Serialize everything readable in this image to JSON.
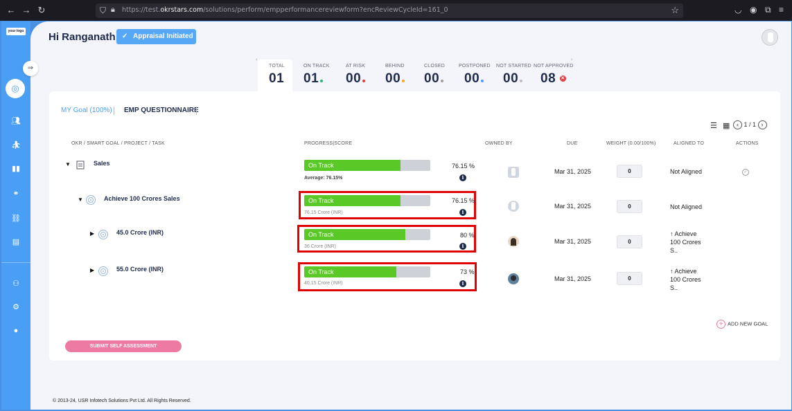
{
  "browser": {
    "url_prefix": "https://test.",
    "url_domain": "okrstars.com",
    "url_path": "/solutions/perform/empperformancereviewform?encReviewCycleId=161_0"
  },
  "sidebar": {
    "logo_text": "your logo"
  },
  "header": {
    "greeting": "Hi Ranganath",
    "status_label": "Appraisal Initiated"
  },
  "stats": [
    {
      "label": "TOTAL",
      "value": "01",
      "dot_color": ""
    },
    {
      "label": "ON TRACK",
      "value": "01",
      "dot_color": "#2bb673"
    },
    {
      "label": "AT RISK",
      "value": "00",
      "dot_color": "#e53935"
    },
    {
      "label": "BEHIND",
      "value": "00",
      "dot_color": "#f5a623"
    },
    {
      "label": "CLOSED",
      "value": "00",
      "dot_color": "#9e9e9e"
    },
    {
      "label": "POSTPONED",
      "value": "00",
      "dot_color": "#4a9ff5"
    },
    {
      "label": "NOT STARTED",
      "value": "00",
      "dot_color": "#bdbdbd"
    },
    {
      "label": "NOT APPROVED",
      "value": "08",
      "dot_color": "#e23b3b"
    }
  ],
  "tabs": {
    "my_goal": "MY Goal (100%)",
    "questionnaire": "EMP QUESTIONNAIRE"
  },
  "pager": {
    "text": "1 / 1"
  },
  "table": {
    "headers": {
      "okr": "OKR / SMART GOAL / PROJECT / TASK",
      "progress": "PROGRESS|SCORE",
      "owned_by": "OWNED BY",
      "due": "DUE",
      "weight": "WEIGHT (0.00/100%)",
      "aligned_to": "ALIGNED TO",
      "actions": "ACTIONS"
    },
    "rows": [
      {
        "title": "Sales",
        "status": "On Track",
        "progress": 0.7615,
        "pct": "76.15",
        "sub": "Average: 76.15%",
        "due": "Mar 31, 2025",
        "weight": "0",
        "aligned": "Not Aligned"
      },
      {
        "title": "Achieve 100 Crores Sales",
        "status": "On Track",
        "progress": 0.7615,
        "pct": "76.15",
        "sub": "76.15 Crore (INR)",
        "due": "Mar 31, 2025",
        "weight": "0",
        "aligned": "Not Aligned"
      },
      {
        "title": "45.0 Crore (INR)",
        "status": "On Track",
        "progress": 0.8,
        "pct": "80",
        "sub": "36 Crore (INR)",
        "due": "Mar 31, 2025",
        "weight": "0",
        "aligned": "↑ Achieve 100 Crores S.."
      },
      {
        "title": "55.0 Crore (INR)",
        "status": "On Track",
        "progress": 0.73,
        "pct": "73",
        "sub": "40.15 Crore (INR)",
        "due": "Mar 31, 2025",
        "weight": "0",
        "aligned": "↑ Achieve 100 Crores S.."
      }
    ]
  },
  "add_goal_label": "ADD NEW GOAL",
  "submit_label": "SUBMIT SELF ASSESSMENT",
  "footer": "© 2013-24, USR Infotech Solutions Pvt Ltd. All Rights Reserved."
}
